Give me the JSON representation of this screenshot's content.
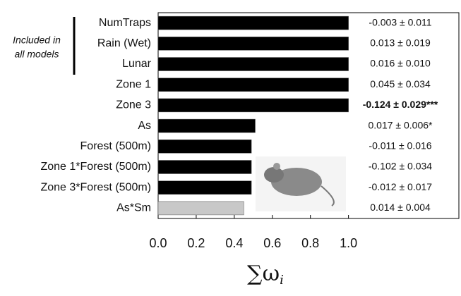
{
  "chart_data": {
    "type": "bar",
    "orientation": "horizontal",
    "categories": [
      "NumTraps",
      "Rain (Wet)",
      "Lunar",
      "Zone 1",
      "Zone 3",
      "As",
      "Forest (500m)",
      "Zone 1*Forest (500m)",
      "Zone 3*Forest (500m)",
      "As*Sm"
    ],
    "values": [
      1.0,
      1.0,
      1.0,
      1.0,
      1.0,
      0.51,
      0.49,
      0.49,
      0.49,
      0.45
    ],
    "colors": [
      "#000000",
      "#000000",
      "#000000",
      "#000000",
      "#000000",
      "#000000",
      "#000000",
      "#000000",
      "#000000",
      "#c8c8c8"
    ],
    "annotations": [
      {
        "text": "-0.003 ± 0.011",
        "bold": false
      },
      {
        "text": "0.013 ± 0.019",
        "bold": false
      },
      {
        "text": "0.016 ± 0.010",
        "bold": false
      },
      {
        "text": "0.045 ± 0.034",
        "bold": false
      },
      {
        "text": "-0.124 ± 0.029***",
        "bold": true
      },
      {
        "text": "0.017 ± 0.006*",
        "bold": false
      },
      {
        "text": "-0.011 ± 0.016",
        "bold": false
      },
      {
        "text": "-0.102 ± 0.034",
        "bold": false
      },
      {
        "text": "-0.012 ± 0.017",
        "bold": false
      },
      {
        "text": "0.014 ± 0.004",
        "bold": false
      }
    ],
    "group_label": [
      "Included in",
      "all models"
    ],
    "x_label": "∑ω",
    "x_label_subscript": "i",
    "xlim": [
      0,
      1.58
    ],
    "xticks": [
      {
        "value": 0,
        "label": "0.0"
      },
      {
        "value": 0.2,
        "label": "0.2"
      },
      {
        "value": 0.4,
        "label": "0.4"
      },
      {
        "value": 0.6,
        "label": "0.6"
      },
      {
        "value": 0.8,
        "label": "0.8"
      },
      {
        "value": 1.0,
        "label": "1.0"
      }
    ]
  }
}
